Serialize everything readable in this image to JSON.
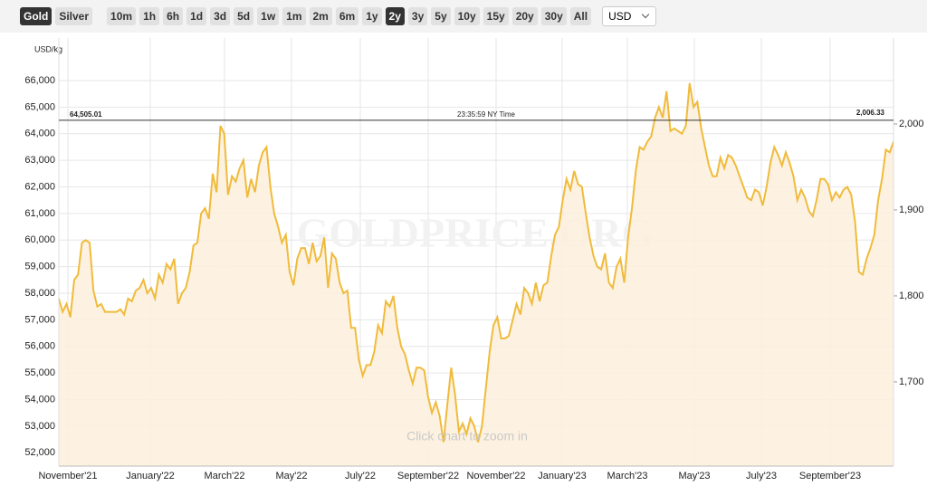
{
  "toolbar": {
    "metals": [
      "Gold",
      "Silver"
    ],
    "active_metal": "Gold",
    "ranges": [
      "10m",
      "1h",
      "6h",
      "1d",
      "3d",
      "5d",
      "1w",
      "1m",
      "2m",
      "6m",
      "1y",
      "2y",
      "3y",
      "5y",
      "10y",
      "15y",
      "20y",
      "30y",
      "All"
    ],
    "active_range": "2y",
    "currency": "USD"
  },
  "chart_data": {
    "type": "area",
    "y_label": "USD/kg",
    "watermark": "GOLDPRICE.ORG",
    "hint": "Click chart to zoom in",
    "color": "#f0bb3c",
    "fill": "#fdf0dc",
    "grid": true,
    "xtick_labels": [
      "November'21",
      "January'22",
      "March'22",
      "May'22",
      "July'22",
      "September'22",
      "November'22",
      "January'23",
      "March'23",
      "May'23",
      "July'23",
      "September'23"
    ],
    "ylim": [
      51500,
      67600
    ],
    "yticks": [
      {
        "value": 52000,
        "label": "52,000"
      },
      {
        "value": 53000,
        "label": "53,000"
      },
      {
        "value": 54000,
        "label": "54,000"
      },
      {
        "value": 55000,
        "label": "55,000"
      },
      {
        "value": 56000,
        "label": "56,000"
      },
      {
        "value": 57000,
        "label": "57,000"
      },
      {
        "value": 58000,
        "label": "58,000"
      },
      {
        "value": 59000,
        "label": "59,000"
      },
      {
        "value": 60000,
        "label": "60,000"
      },
      {
        "value": 61000,
        "label": "61,000"
      },
      {
        "value": 62000,
        "label": "62,000"
      },
      {
        "value": 63000,
        "label": "63,000"
      },
      {
        "value": 64000,
        "label": "64,000"
      },
      {
        "value": 65000,
        "label": "65,000"
      },
      {
        "value": 66000,
        "label": "66,000"
      }
    ],
    "y2lim": [
      1602,
      2100
    ],
    "y2ticks": [
      {
        "value": 1700,
        "label": "1,700"
      },
      {
        "value": 1800,
        "label": "1,800"
      },
      {
        "value": 1900,
        "label": "1,900"
      },
      {
        "value": 2000,
        "label": "2,000"
      }
    ],
    "reference": {
      "value": 64505.01,
      "label": "64,505.01",
      "y2_value": 2006.33,
      "y2_label": "2,006.33",
      "time": "23:35:59 NY Time"
    },
    "values": [
      57800,
      57300,
      57600,
      57100,
      58500,
      58700,
      59900,
      60000,
      59900,
      58100,
      57500,
      57600,
      57300,
      57300,
      57300,
      57300,
      57400,
      57200,
      57800,
      57700,
      58100,
      58200,
      58500,
      58000,
      58200,
      57800,
      58700,
      58400,
      59100,
      58900,
      59300,
      57600,
      58000,
      58200,
      58800,
      59800,
      59900,
      61000,
      61200,
      60800,
      62500,
      61800,
      64300,
      64000,
      61700,
      62400,
      62200,
      62700,
      63000,
      61600,
      62300,
      61800,
      62800,
      63300,
      63500,
      62000,
      61000,
      60500,
      59900,
      60200,
      58800,
      58300,
      59300,
      59700,
      59700,
      59100,
      59900,
      59200,
      59400,
      60100,
      58200,
      59500,
      59300,
      58400,
      58000,
      58100,
      56700,
      56700,
      55500,
      54900,
      55300,
      55300,
      55800,
      56800,
      56500,
      57700,
      57500,
      57900,
      56700,
      56000,
      55700,
      55100,
      54600,
      55200,
      55200,
      55100,
      54100,
      53500,
      53900,
      53400,
      52400,
      53800,
      55200,
      54200,
      52800,
      53100,
      52700,
      53300,
      53000,
      52400,
      53000,
      54400,
      55800,
      56800,
      57100,
      56300,
      56300,
      56400,
      57000,
      57600,
      57200,
      58200,
      58000,
      57600,
      58400,
      57700,
      58300,
      58400,
      59400,
      60200,
      60500,
      61500,
      62300,
      61900,
      62600,
      62100,
      62000,
      61000,
      60100,
      59400,
      59000,
      58900,
      59500,
      58400,
      58200,
      59000,
      59300,
      58400,
      60100,
      61200,
      62600,
      63500,
      63400,
      63700,
      63900,
      64600,
      65000,
      64600,
      65600,
      64100,
      64200,
      64100,
      64000,
      64300,
      65900,
      65000,
      65200,
      64200,
      63500,
      62800,
      62400,
      62400,
      63100,
      62700,
      63200,
      63100,
      62800,
      62400,
      62000,
      61600,
      61500,
      61900,
      61800,
      61300,
      62000,
      62900,
      63500,
      63200,
      62800,
      63300,
      62900,
      62400,
      61500,
      61900,
      61600,
      61100,
      60900,
      61500,
      62300,
      62300,
      62100,
      61500,
      61800,
      61600,
      61900,
      62000,
      61700,
      60700,
      58800,
      58700,
      59300,
      59700,
      60200,
      61500,
      62300,
      63400,
      63300,
      63700
    ]
  }
}
